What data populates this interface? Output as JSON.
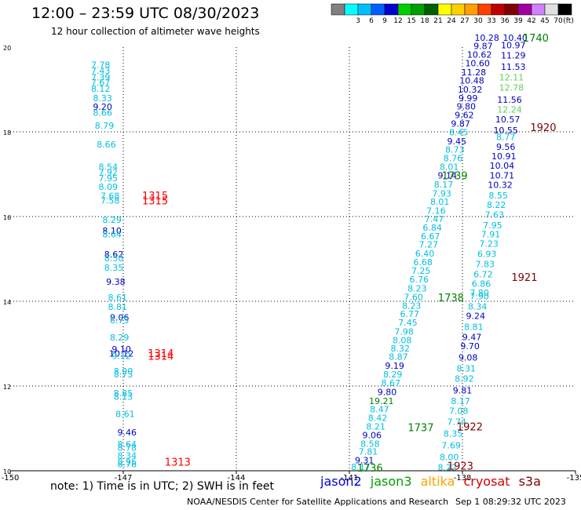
{
  "title": "12:00 – 23:59 UTC 08/30/2023",
  "subtitle": "12 hour collection of altimeter wave heights",
  "note": "note:  1) Time is in UTC;  2) SWH is in feet",
  "credit": "NOAA/NESDIS Center for Satellite Applications and Research",
  "stamp": "Sep  1 08:29:32 UTC 2023",
  "colorbar": {
    "unit": "(ft)",
    "bins": [
      {
        "label": "",
        "color": "#808080"
      },
      {
        "label": "3",
        "color": "#00ffff"
      },
      {
        "label": "6",
        "color": "#00bfff"
      },
      {
        "label": "9",
        "color": "#0060ff"
      },
      {
        "label": "12",
        "color": "#0000d0"
      },
      {
        "label": "15",
        "color": "#00d000"
      },
      {
        "label": "18",
        "color": "#00a000"
      },
      {
        "label": "21",
        "color": "#006000"
      },
      {
        "label": "24",
        "color": "#ffff00"
      },
      {
        "label": "27",
        "color": "#ffd000"
      },
      {
        "label": "30",
        "color": "#ffa000"
      },
      {
        "label": "33",
        "color": "#ff4000"
      },
      {
        "label": "36",
        "color": "#c00000"
      },
      {
        "label": "39",
        "color": "#800000"
      },
      {
        "label": "42",
        "color": "#a000a0"
      },
      {
        "label": "45",
        "color": "#d080ff"
      },
      {
        "label": "70",
        "color": "#e0e0e0"
      },
      {
        "label": "",
        "color": "#000000"
      }
    ]
  },
  "map": {
    "lon_range": [
      -150,
      -135
    ],
    "lat_range": [
      10,
      20
    ],
    "lon_ticks": [
      "-150",
      "-147",
      "-144",
      "-141",
      "-138",
      "-135"
    ],
    "lat_ticks": [
      "20",
      "18",
      "16",
      "14",
      "12",
      "10"
    ]
  },
  "legend": [
    {
      "name": "jason2",
      "color": "#0000d0"
    },
    {
      "name": "jason3",
      "color": "#00a000"
    },
    {
      "name": "altika",
      "color": "#ffa000"
    },
    {
      "name": "cryosat",
      "color": "#d00000"
    },
    {
      "name": "s3a",
      "color": "#800000"
    }
  ],
  "colors": {
    "cyan": "#00c0e0",
    "blue": "#0000c0",
    "green": "#008000",
    "lightgreen": "#60d060",
    "red": "#ff0000",
    "darkred": "#800000"
  },
  "tracks": [
    {
      "id": "track-a",
      "points": [
        {
          "lon": -147.6,
          "lat": 19.58,
          "v": "7.78",
          "c": "cyan"
        },
        {
          "lon": -147.6,
          "lat": 19.44,
          "v": "7.43",
          "c": "cyan"
        },
        {
          "lon": -147.6,
          "lat": 19.29,
          "v": "7.39",
          "c": "cyan"
        },
        {
          "lon": -147.6,
          "lat": 19.17,
          "v": "7.67",
          "c": "cyan"
        },
        {
          "lon": -147.6,
          "lat": 19.02,
          "v": "8.12",
          "c": "cyan"
        },
        {
          "lon": -147.55,
          "lat": 18.8,
          "v": "8.33",
          "c": "cyan"
        },
        {
          "lon": -147.55,
          "lat": 18.59,
          "v": "9.20",
          "c": "blue"
        },
        {
          "lon": -147.55,
          "lat": 18.45,
          "v": "8.66",
          "c": "cyan"
        },
        {
          "lon": -147.5,
          "lat": 18.15,
          "v": "8.79",
          "c": "cyan"
        },
        {
          "lon": -147.45,
          "lat": 17.7,
          "v": "8.66",
          "c": "cyan"
        },
        {
          "lon": -147.4,
          "lat": 17.18,
          "v": "8.54",
          "c": "cyan"
        },
        {
          "lon": -147.4,
          "lat": 17.05,
          "v": "7.92",
          "c": "cyan"
        },
        {
          "lon": -147.4,
          "lat": 16.91,
          "v": "7.95",
          "c": "cyan"
        },
        {
          "lon": -147.4,
          "lat": 16.7,
          "v": "8.09",
          "c": "cyan"
        },
        {
          "lon": -147.35,
          "lat": 16.49,
          "v": "7.68",
          "c": "cyan"
        },
        {
          "lon": -147.35,
          "lat": 16.38,
          "v": "7.58",
          "c": "cyan"
        },
        {
          "lon": -147.3,
          "lat": 15.93,
          "v": "8.29",
          "c": "cyan"
        },
        {
          "lon": -147.3,
          "lat": 15.67,
          "v": "8.10",
          "c": "blue"
        },
        {
          "lon": -147.3,
          "lat": 15.58,
          "v": "8.64",
          "c": "cyan"
        },
        {
          "lon": -147.25,
          "lat": 15.11,
          "v": "8.62",
          "c": "blue"
        },
        {
          "lon": -147.25,
          "lat": 15.02,
          "v": "8.50",
          "c": "cyan"
        },
        {
          "lon": -147.25,
          "lat": 14.8,
          "v": "8.35",
          "c": "cyan"
        },
        {
          "lon": -147.2,
          "lat": 14.46,
          "v": "9.38",
          "c": "blue"
        },
        {
          "lon": -147.15,
          "lat": 14.09,
          "v": "8.61",
          "c": "cyan"
        },
        {
          "lon": -147.15,
          "lat": 13.87,
          "v": "8.81",
          "c": "cyan"
        },
        {
          "lon": -147.1,
          "lat": 13.62,
          "v": "9.06",
          "c": "blue"
        },
        {
          "lon": -147.1,
          "lat": 13.56,
          "v": "8.75",
          "c": "cyan"
        },
        {
          "lon": -147.1,
          "lat": 13.15,
          "v": "8.29",
          "c": "cyan"
        },
        {
          "lon": -147.05,
          "lat": 12.87,
          "v": "9.10",
          "c": "blue"
        },
        {
          "lon": -147.05,
          "lat": 12.77,
          "v": "10.12",
          "c": "blue"
        },
        {
          "lon": -147.05,
          "lat": 12.71,
          "v": "9.12",
          "c": "cyan"
        },
        {
          "lon": -147.0,
          "lat": 12.35,
          "v": "8.00",
          "c": "cyan"
        },
        {
          "lon": -147.0,
          "lat": 12.28,
          "v": "8.73",
          "c": "cyan"
        },
        {
          "lon": -147.0,
          "lat": 11.83,
          "v": "8.85",
          "c": "cyan"
        },
        {
          "lon": -147.0,
          "lat": 11.75,
          "v": "8.13",
          "c": "cyan"
        },
        {
          "lon": -146.95,
          "lat": 11.34,
          "v": "8.61",
          "c": "cyan"
        },
        {
          "lon": -146.9,
          "lat": 10.91,
          "v": "9.46",
          "c": "blue"
        },
        {
          "lon": -146.9,
          "lat": 10.63,
          "v": "8.64",
          "c": "cyan"
        },
        {
          "lon": -146.9,
          "lat": 10.55,
          "v": "8.78",
          "c": "cyan"
        },
        {
          "lon": -146.9,
          "lat": 10.36,
          "v": "8.34",
          "c": "cyan"
        },
        {
          "lon": -146.9,
          "lat": 10.21,
          "v": "8.95",
          "c": "cyan"
        },
        {
          "lon": -146.9,
          "lat": 10.16,
          "v": "8.76",
          "c": "cyan"
        }
      ]
    },
    {
      "id": "track-b",
      "points": [
        {
          "lon": -140.7,
          "lat": 10.09,
          "v": "8.17",
          "c": "cyan"
        },
        {
          "lon": -140.6,
          "lat": 10.25,
          "v": "9.31",
          "c": "blue"
        },
        {
          "lon": -140.5,
          "lat": 10.45,
          "v": "7.81",
          "c": "cyan"
        },
        {
          "lon": -140.45,
          "lat": 10.64,
          "v": "8.58",
          "c": "cyan"
        },
        {
          "lon": -140.4,
          "lat": 10.84,
          "v": "9.06",
          "c": "blue"
        },
        {
          "lon": -140.3,
          "lat": 11.05,
          "v": "8.21",
          "c": "cyan"
        },
        {
          "lon": -140.25,
          "lat": 11.25,
          "v": "8.42",
          "c": "cyan"
        },
        {
          "lon": -140.2,
          "lat": 11.45,
          "v": "8.47",
          "c": "cyan"
        },
        {
          "lon": -140.15,
          "lat": 11.65,
          "v": "19.21",
          "c": "green"
        },
        {
          "lon": -140.0,
          "lat": 11.86,
          "v": "9.80",
          "c": "blue"
        },
        {
          "lon": -139.9,
          "lat": 12.07,
          "v": "8.67",
          "c": "cyan"
        },
        {
          "lon": -139.85,
          "lat": 12.28,
          "v": "8.29",
          "c": "cyan"
        },
        {
          "lon": -139.8,
          "lat": 12.48,
          "v": "9.19",
          "c": "blue"
        },
        {
          "lon": -139.7,
          "lat": 12.69,
          "v": "8.87",
          "c": "cyan"
        },
        {
          "lon": -139.65,
          "lat": 12.89,
          "v": "8.32",
          "c": "cyan"
        },
        {
          "lon": -139.6,
          "lat": 13.08,
          "v": "8.08",
          "c": "cyan"
        },
        {
          "lon": -139.55,
          "lat": 13.29,
          "v": "7.98",
          "c": "cyan"
        },
        {
          "lon": -139.45,
          "lat": 13.5,
          "v": "7.45",
          "c": "cyan"
        },
        {
          "lon": -139.4,
          "lat": 13.7,
          "v": "6.77",
          "c": "cyan"
        },
        {
          "lon": -139.35,
          "lat": 13.9,
          "v": "8.23",
          "c": "cyan"
        },
        {
          "lon": -139.3,
          "lat": 14.1,
          "v": "7.60",
          "c": "cyan"
        },
        {
          "lon": -139.2,
          "lat": 14.31,
          "v": "8.23",
          "c": "cyan"
        },
        {
          "lon": -139.15,
          "lat": 14.52,
          "v": "6.76",
          "c": "cyan"
        },
        {
          "lon": -139.1,
          "lat": 14.72,
          "v": "7.25",
          "c": "cyan"
        },
        {
          "lon": -139.05,
          "lat": 14.93,
          "v": "6.68",
          "c": "cyan"
        },
        {
          "lon": -139.0,
          "lat": 15.13,
          "v": "6.40",
          "c": "cyan"
        },
        {
          "lon": -138.9,
          "lat": 15.34,
          "v": "7.27",
          "c": "cyan"
        },
        {
          "lon": -138.85,
          "lat": 15.54,
          "v": "6.67",
          "c": "cyan"
        },
        {
          "lon": -138.8,
          "lat": 15.74,
          "v": "6.84",
          "c": "cyan"
        },
        {
          "lon": -138.75,
          "lat": 15.94,
          "v": "7.47",
          "c": "cyan"
        },
        {
          "lon": -138.7,
          "lat": 16.14,
          "v": "7.16",
          "c": "cyan"
        },
        {
          "lon": -138.6,
          "lat": 16.35,
          "v": "8.01",
          "c": "cyan"
        },
        {
          "lon": -138.55,
          "lat": 16.55,
          "v": "7.93",
          "c": "cyan"
        },
        {
          "lon": -138.5,
          "lat": 16.76,
          "v": "8.17",
          "c": "cyan"
        },
        {
          "lon": -138.4,
          "lat": 16.97,
          "v": "9.14",
          "c": "blue"
        },
        {
          "lon": -138.35,
          "lat": 17.18,
          "v": "8.01",
          "c": "cyan"
        },
        {
          "lon": -138.25,
          "lat": 17.38,
          "v": "8.76",
          "c": "cyan"
        },
        {
          "lon": -138.2,
          "lat": 17.58,
          "v": "8.73",
          "c": "cyan"
        },
        {
          "lon": -138.15,
          "lat": 17.78,
          "v": "9.45",
          "c": "blue"
        },
        {
          "lon": -138.1,
          "lat": 17.99,
          "v": "8.45",
          "c": "cyan"
        },
        {
          "lon": -138.05,
          "lat": 18.19,
          "v": "9.87",
          "c": "blue"
        },
        {
          "lon": -137.95,
          "lat": 18.4,
          "v": "9.62",
          "c": "blue"
        },
        {
          "lon": -137.9,
          "lat": 18.6,
          "v": "9.80",
          "c": "blue"
        },
        {
          "lon": -137.85,
          "lat": 18.8,
          "v": "9.99",
          "c": "blue"
        },
        {
          "lon": -137.8,
          "lat": 19.0,
          "v": "10.32",
          "c": "blue"
        },
        {
          "lon": -137.75,
          "lat": 19.21,
          "v": "10.48",
          "c": "blue"
        },
        {
          "lon": -137.7,
          "lat": 19.41,
          "v": "11.28",
          "c": "blue"
        },
        {
          "lon": -137.6,
          "lat": 19.62,
          "v": "10.60",
          "c": "blue"
        },
        {
          "lon": -137.55,
          "lat": 19.82,
          "v": "10.62",
          "c": "blue"
        },
        {
          "lon": -137.45,
          "lat": 20.03,
          "v": "9.87",
          "c": "blue"
        },
        {
          "lon": -137.35,
          "lat": 20.22,
          "v": "10.28",
          "c": "blue"
        }
      ]
    },
    {
      "id": "track-c",
      "points": [
        {
          "lon": -138.4,
          "lat": 10.08,
          "v": "8.22",
          "c": "cyan"
        },
        {
          "lon": -138.35,
          "lat": 10.32,
          "v": "8.00",
          "c": "cyan"
        },
        {
          "lon": -138.3,
          "lat": 10.6,
          "v": "7.69",
          "c": "cyan"
        },
        {
          "lon": -138.25,
          "lat": 10.88,
          "v": "8.35",
          "c": "cyan"
        },
        {
          "lon": -138.15,
          "lat": 11.16,
          "v": "7.74",
          "c": "cyan"
        },
        {
          "lon": -138.1,
          "lat": 11.42,
          "v": "7.08",
          "c": "cyan"
        },
        {
          "lon": -138.05,
          "lat": 11.65,
          "v": "8.17",
          "c": "cyan"
        },
        {
          "lon": -138.0,
          "lat": 11.9,
          "v": "9.81",
          "c": "blue"
        },
        {
          "lon": -137.95,
          "lat": 12.18,
          "v": "8.92",
          "c": "cyan"
        },
        {
          "lon": -137.9,
          "lat": 12.42,
          "v": "8.31",
          "c": "cyan"
        },
        {
          "lon": -137.85,
          "lat": 12.68,
          "v": "9.08",
          "c": "blue"
        },
        {
          "lon": -137.8,
          "lat": 12.94,
          "v": "9.70",
          "c": "blue"
        },
        {
          "lon": -137.75,
          "lat": 13.16,
          "v": "9.47",
          "c": "blue"
        },
        {
          "lon": -137.7,
          "lat": 13.4,
          "v": "8.81",
          "c": "cyan"
        },
        {
          "lon": -137.65,
          "lat": 13.66,
          "v": "9.24",
          "c": "blue"
        },
        {
          "lon": -137.6,
          "lat": 13.88,
          "v": "8.34",
          "c": "cyan"
        },
        {
          "lon": -137.55,
          "lat": 14.12,
          "v": "7.90",
          "c": "cyan"
        },
        {
          "lon": -137.55,
          "lat": 14.2,
          "v": "7.80",
          "c": "cyan"
        },
        {
          "lon": -137.5,
          "lat": 14.42,
          "v": "6.86",
          "c": "cyan"
        },
        {
          "lon": -137.45,
          "lat": 14.64,
          "v": "6.72",
          "c": "cyan"
        },
        {
          "lon": -137.4,
          "lat": 14.88,
          "v": "7.83",
          "c": "cyan"
        },
        {
          "lon": -137.35,
          "lat": 15.12,
          "v": "6.93",
          "c": "cyan"
        },
        {
          "lon": -137.3,
          "lat": 15.36,
          "v": "7.23",
          "c": "cyan"
        },
        {
          "lon": -137.25,
          "lat": 15.58,
          "v": "7.91",
          "c": "cyan"
        },
        {
          "lon": -137.2,
          "lat": 15.8,
          "v": "7.95",
          "c": "cyan"
        },
        {
          "lon": -137.15,
          "lat": 16.05,
          "v": "7.63",
          "c": "cyan"
        },
        {
          "lon": -137.1,
          "lat": 16.28,
          "v": "8.22",
          "c": "cyan"
        },
        {
          "lon": -137.05,
          "lat": 16.5,
          "v": "8.55",
          "c": "cyan"
        },
        {
          "lon": -137.0,
          "lat": 16.75,
          "v": "10.32",
          "c": "blue"
        },
        {
          "lon": -136.95,
          "lat": 16.97,
          "v": "10.71",
          "c": "blue"
        },
        {
          "lon": -136.95,
          "lat": 17.2,
          "v": "10.04",
          "c": "blue"
        },
        {
          "lon": -136.9,
          "lat": 17.43,
          "v": "10.91",
          "c": "blue"
        },
        {
          "lon": -136.85,
          "lat": 17.65,
          "v": "9.56",
          "c": "blue"
        },
        {
          "lon": -136.85,
          "lat": 17.88,
          "v": "8.77",
          "c": "cyan"
        },
        {
          "lon": -136.85,
          "lat": 18.04,
          "v": "10.55",
          "c": "blue"
        },
        {
          "lon": -136.8,
          "lat": 18.3,
          "v": "10.57",
          "c": "blue"
        },
        {
          "lon": -136.75,
          "lat": 18.53,
          "v": "12.24",
          "c": "lightgreen"
        },
        {
          "lon": -136.75,
          "lat": 18.76,
          "v": "11.56",
          "c": "blue"
        },
        {
          "lon": -136.7,
          "lat": 19.05,
          "v": "12.78",
          "c": "lightgreen"
        },
        {
          "lon": -136.7,
          "lat": 19.29,
          "v": "12.11",
          "c": "lightgreen"
        },
        {
          "lon": -136.65,
          "lat": 19.54,
          "v": "11.53",
          "c": "blue"
        },
        {
          "lon": -136.65,
          "lat": 19.81,
          "v": "11.29",
          "c": "blue"
        },
        {
          "lon": -136.65,
          "lat": 20.05,
          "v": "10.97",
          "c": "blue"
        },
        {
          "lon": -136.6,
          "lat": 20.22,
          "v": "10.40",
          "c": "blue"
        }
      ]
    }
  ],
  "time_labels": [
    {
      "lon": -146.5,
      "lat": 16.5,
      "v": "1315",
      "c": "red"
    },
    {
      "lon": -146.5,
      "lat": 16.38,
      "v": "1315",
      "c": "red"
    },
    {
      "lon": -146.35,
      "lat": 12.78,
      "v": "1314",
      "c": "red"
    },
    {
      "lon": -146.35,
      "lat": 12.71,
      "v": "1314",
      "c": "red"
    },
    {
      "lon": -145.9,
      "lat": 10.21,
      "v": "1313",
      "c": "red"
    },
    {
      "lon": -136.2,
      "lat": 18.11,
      "v": "1920",
      "c": "darkred"
    },
    {
      "lon": -136.7,
      "lat": 14.57,
      "v": "1921",
      "c": "darkred"
    },
    {
      "lon": -138.15,
      "lat": 11.05,
      "v": "1922",
      "c": "darkred"
    },
    {
      "lon": -138.4,
      "lat": 10.12,
      "v": "1923",
      "c": "darkred"
    },
    {
      "lon": -138.55,
      "lat": 16.97,
      "v": "1739",
      "c": "green"
    },
    {
      "lon": -138.65,
      "lat": 14.09,
      "v": "1738",
      "c": "green"
    },
    {
      "lon": -139.45,
      "lat": 11.03,
      "v": "1737",
      "c": "green"
    },
    {
      "lon": -140.8,
      "lat": 10.07,
      "v": "1736",
      "c": "green"
    },
    {
      "lon": -136.4,
      "lat": 20.22,
      "v": "1740",
      "c": "green"
    }
  ]
}
